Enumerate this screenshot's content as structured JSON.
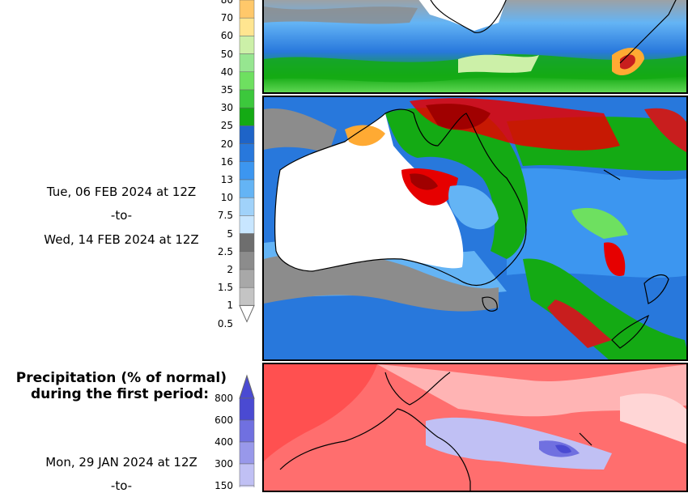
{
  "upper_colorbar": {
    "labels": [
      "80",
      "70",
      "60",
      "50",
      "40",
      "35",
      "30",
      "25",
      "20",
      "16",
      "13",
      "10",
      "7.5",
      "5",
      "2.5",
      "2",
      "1.5",
      "1",
      "0.5"
    ],
    "colors": [
      "#ffaa33",
      "#ffc86a",
      "#ffe590",
      "#ccf0a8",
      "#96e690",
      "#6ee060",
      "#3cc83c",
      "#14aa14",
      "#1e64c8",
      "#2878dc",
      "#3c96f0",
      "#64b4f5",
      "#a0d2fa",
      "#c8e6ff",
      "#6e6e6e",
      "#8c8c8c",
      "#a8a8a8",
      "#c4c4c4"
    ]
  },
  "period_mid": {
    "start": "Tue, 06 FEB 2024 at 12Z",
    "sep": "-to-",
    "end": "Wed, 14 FEB 2024 at 12Z"
  },
  "percent_section": {
    "title_line1": "Precipitation (% of normal)",
    "title_line2": "during the first period:",
    "colorbar_labels": [
      "800",
      "600",
      "400",
      "300",
      "150"
    ],
    "colorbar_colors": [
      "#4a4ad2",
      "#7070e0",
      "#9898ea",
      "#c0c0f4",
      "#e2e2fa"
    ],
    "start": "Mon, 29 JAN 2024 at 12Z",
    "sep": "-to-"
  }
}
